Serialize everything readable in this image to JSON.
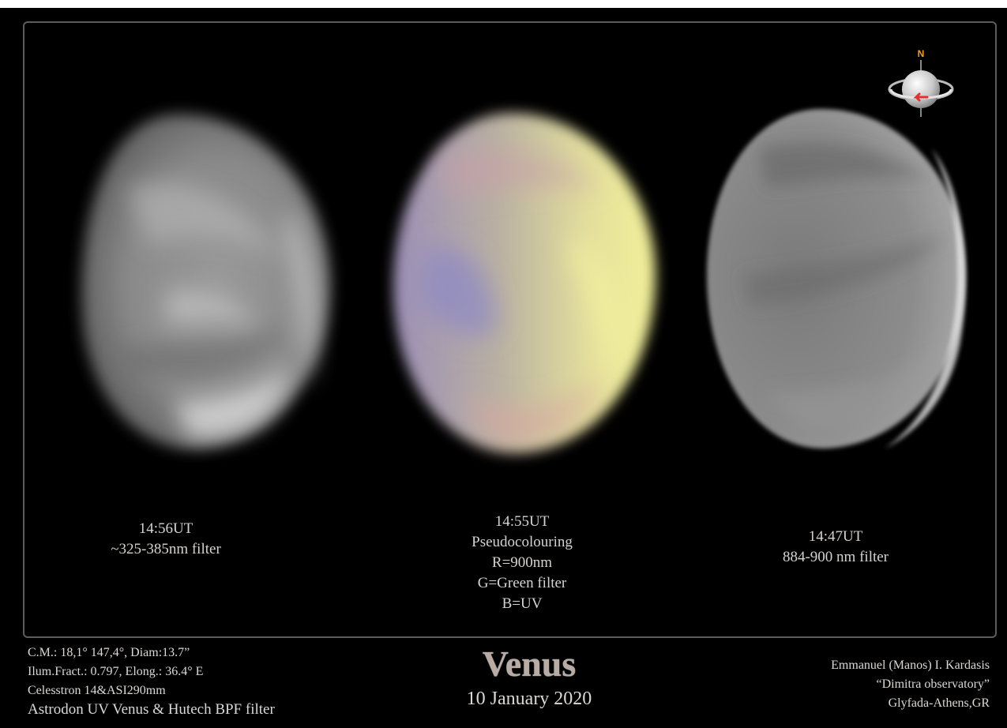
{
  "planets": [
    {
      "time": "14:56UT",
      "lines": [
        "~325-385nm filter"
      ]
    },
    {
      "time": "14:55UT",
      "lines": [
        "Pseudocolouring",
        "R=900nm",
        "G=Green filter",
        "B=UV"
      ]
    },
    {
      "time": "14:47UT",
      "lines": [
        "884-900 nm filter"
      ]
    }
  ],
  "compass": {
    "north_label": "N",
    "accent": "#f0a020",
    "arrow": "#e03030"
  },
  "observation": {
    "cm": "C.M.: 18,1°   147,4°, Diam:13.7”",
    "illum": "Ilum.Fract.: 0.797, Elong.: 36.4° E",
    "equipment": "Celesstron 14&ASI290mm",
    "filters": "Astrodon UV Venus  & Hutech BPF filter"
  },
  "title": "Venus",
  "date": "10 January 2020",
  "author": {
    "name": "Emmanuel (Manos) I. Kardasis",
    "observatory": "“Dimitra observatory”",
    "location": "Glyfada-Athens,GR"
  }
}
